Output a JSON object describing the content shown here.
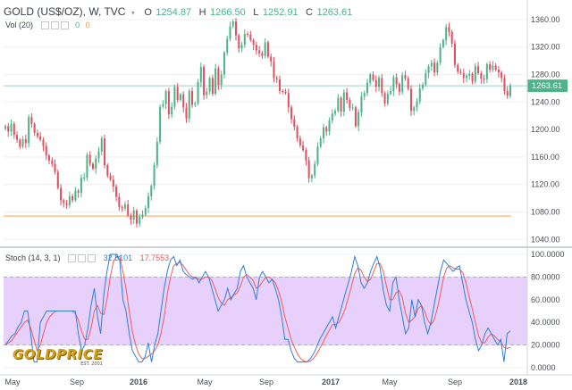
{
  "header": {
    "symbol": "GOLD (US$/OZ), W, TVC",
    "o_label": "O",
    "o_value": "1254.87",
    "h_label": "H",
    "h_value": "1266.50",
    "l_label": "L",
    "l_value": "1252.91",
    "c_label": "C",
    "c_value": "1263.61",
    "vol_label": "Vol (20)",
    "vol_values": [
      "0",
      "0"
    ],
    "stoch_label": "Stoch (14, 3, 1)",
    "stoch_k": "32.5101",
    "stoch_d": "17.7553"
  },
  "logo": {
    "text": "GOLDPRICE",
    "sub": "EST. 2001"
  },
  "colors": {
    "up": "#4db38a",
    "down": "#e0505f",
    "grid": "#eef0f3",
    "stoch_k": "#2e7fd8",
    "stoch_d": "#f05a5a",
    "band": "#e3c9fb",
    "support_line": "#f5c38d",
    "price_badge": "#4db38a"
  },
  "chart_data": [
    {
      "type": "candlestick",
      "timeframe": "weekly",
      "x_labels": [
        "May",
        "Sep",
        "2016",
        "May",
        "Sep",
        "2017",
        "May",
        "Sep",
        "2018"
      ],
      "y_ticks": [
        "1360.00",
        "1320.00",
        "1280.00",
        "1240.00",
        "1200.00",
        "1160.00",
        "1120.00",
        "1080.00",
        "1040.00"
      ],
      "ylim": [
        1030,
        1378
      ],
      "last_price": 1263.61,
      "support_level": 1074,
      "close_values": [
        1205,
        1197,
        1208,
        1192,
        1185,
        1175,
        1186,
        1180,
        1218,
        1208,
        1195,
        1190,
        1185,
        1176,
        1162,
        1155,
        1150,
        1138,
        1115,
        1097,
        1093,
        1090,
        1103,
        1097,
        1111,
        1108,
        1130,
        1130,
        1163,
        1150,
        1143,
        1158,
        1168,
        1187,
        1148,
        1133,
        1127,
        1117,
        1102,
        1087,
        1085,
        1091,
        1075,
        1069,
        1082,
        1063,
        1073,
        1076,
        1086,
        1103,
        1118,
        1148,
        1182,
        1233,
        1237,
        1256,
        1222,
        1233,
        1262,
        1243,
        1251,
        1232,
        1216,
        1256,
        1236,
        1238,
        1269,
        1291,
        1250,
        1255,
        1275,
        1252,
        1289,
        1265,
        1280,
        1312,
        1332,
        1350,
        1357,
        1337,
        1318,
        1323,
        1339,
        1338,
        1330,
        1323,
        1315,
        1311,
        1307,
        1327,
        1306,
        1299,
        1275,
        1273,
        1256,
        1255,
        1253,
        1232,
        1215,
        1204,
        1187,
        1177,
        1170,
        1155,
        1129,
        1133,
        1150,
        1175,
        1187,
        1203,
        1197,
        1213,
        1223,
        1227,
        1246,
        1226,
        1254,
        1243,
        1231,
        1232,
        1205,
        1225,
        1248,
        1253,
        1268,
        1280,
        1272,
        1262,
        1275,
        1253,
        1238,
        1252,
        1256,
        1276,
        1266,
        1255,
        1279,
        1274,
        1259,
        1227,
        1232,
        1241,
        1260,
        1265,
        1282,
        1292,
        1297,
        1283,
        1297,
        1320,
        1330,
        1349,
        1342,
        1325,
        1294,
        1284,
        1282,
        1275,
        1278,
        1281,
        1270,
        1292,
        1282,
        1274,
        1273,
        1295,
        1287,
        1293,
        1287,
        1283,
        1275,
        1256,
        1249,
        1264
      ]
    },
    {
      "type": "line",
      "title": "Stoch (14, 3, 1)",
      "y_ticks": [
        "100.0000",
        "80.0000",
        "60.0000",
        "40.0000",
        "20.0000",
        "0.0000"
      ],
      "ylim": [
        0,
        100
      ],
      "overbought": 80,
      "oversold": 20,
      "series": [
        {
          "name": "%K",
          "values": [
            20.0,
            24.0,
            28.0,
            30.0,
            36.0,
            40.0,
            50.0,
            50.0,
            30.0,
            5.0,
            5.0,
            40.0,
            45.0,
            50.0,
            50.0,
            50.0,
            50.0,
            50.0,
            50.0,
            50.0,
            50.0,
            50.0,
            50.0,
            30.0,
            15.0,
            20.0,
            35.0,
            55.0,
            70.0,
            45.0,
            30.0,
            65.0,
            85.0,
            100.0,
            100.0,
            100.0,
            95.0,
            60.0,
            50.0,
            30.0,
            15.0,
            10.0,
            5.0,
            5.0,
            10.0,
            22.0,
            5.0,
            20.0,
            30.0,
            50.0,
            70.0,
            85.0,
            95.0,
            98.0,
            90.0,
            95.0,
            85.0,
            82.0,
            80.0,
            78.0,
            80.0,
            75.0,
            80.0,
            85.0,
            80.0,
            70.0,
            60.0,
            50.0,
            55.0,
            60.0,
            70.0,
            60.0,
            65.0,
            70.0,
            85.0,
            90.0,
            80.0,
            75.0,
            70.0,
            60.0,
            80.0,
            85.0,
            80.0,
            75.0,
            78.0,
            70.0,
            60.0,
            45.0,
            25.0,
            25.0,
            15.0,
            8.0,
            5.0,
            5.0,
            5.0,
            5.0,
            8.0,
            12.0,
            18.0,
            25.0,
            30.0,
            35.0,
            40.0,
            45.0,
            35.0,
            45.0,
            55.0,
            65.0,
            75.0,
            85.0,
            98.0,
            90.0,
            75.0,
            70.0,
            75.0,
            85.0,
            92.0,
            98.0,
            88.0,
            68.0,
            55.0,
            50.0,
            75.0,
            80.0,
            60.0,
            45.0,
            30.0,
            35.0,
            60.0,
            45.0,
            60.0,
            55.0,
            40.0,
            30.0,
            40.0,
            55.0,
            70.0,
            85.0,
            95.0,
            92.0,
            88.0,
            85.0,
            88.0,
            90.0,
            75.0,
            60.0,
            50.0,
            40.0,
            25.0,
            15.0,
            20.0,
            30.0,
            35.0,
            30.0,
            25.0,
            20.0,
            25.0,
            5.0,
            30.0,
            32.5
          ]
        },
        {
          "name": "%D",
          "values": [
            20.0,
            22.0,
            24.0,
            28.0,
            32.0,
            36.0,
            40.0,
            42.0,
            35.0,
            25.0,
            15.0,
            20.0,
            30.0,
            40.0,
            45.0,
            48.0,
            50.0,
            50.0,
            50.0,
            50.0,
            50.0,
            50.0,
            48.0,
            42.0,
            32.0,
            25.0,
            25.0,
            35.0,
            50.0,
            55.0,
            48.0,
            47.0,
            60.0,
            80.0,
            93.0,
            98.0,
            98.0,
            85.0,
            70.0,
            50.0,
            32.0,
            20.0,
            12.0,
            8.0,
            8.0,
            10.0,
            12.0,
            15.0,
            20.0,
            30.0,
            45.0,
            65.0,
            80.0,
            90.0,
            92.0,
            93.0,
            90.0,
            86.0,
            82.0,
            80.0,
            79.0,
            78.0,
            78.0,
            80.0,
            80.0,
            77.0,
            70.0,
            62.0,
            57.0,
            55.0,
            60.0,
            62.0,
            64.0,
            66.0,
            72.0,
            80.0,
            82.0,
            80.0,
            77.0,
            70.0,
            72.0,
            76.0,
            80.0,
            80.0,
            78.0,
            75.0,
            68.0,
            58.0,
            45.0,
            35.0,
            25.0,
            18.0,
            12.0,
            8.0,
            6.0,
            5.0,
            6.0,
            8.0,
            12.0,
            17.0,
            22.0,
            28.0,
            33.0,
            38.0,
            38.0,
            40.0,
            45.0,
            52.0,
            62.0,
            72.0,
            83.0,
            88.0,
            86.0,
            80.0,
            76.0,
            78.0,
            85.0,
            92.0,
            92.0,
            85.0,
            72.0,
            60.0,
            60.0,
            66.0,
            68.0,
            62.0,
            48.0,
            40.0,
            42.0,
            45.0,
            52.0,
            55.0,
            50.0,
            42.0,
            38.0,
            42.0,
            52.0,
            65.0,
            80.0,
            88.0,
            90.0,
            88.0,
            87.0,
            87.0,
            84.0,
            75.0,
            63.0,
            52.0,
            40.0,
            28.0,
            22.0,
            22.0,
            27.0,
            30.0,
            28.0,
            25.0,
            23.0,
            18.0,
            17.0,
            17.8
          ]
        }
      ]
    }
  ]
}
